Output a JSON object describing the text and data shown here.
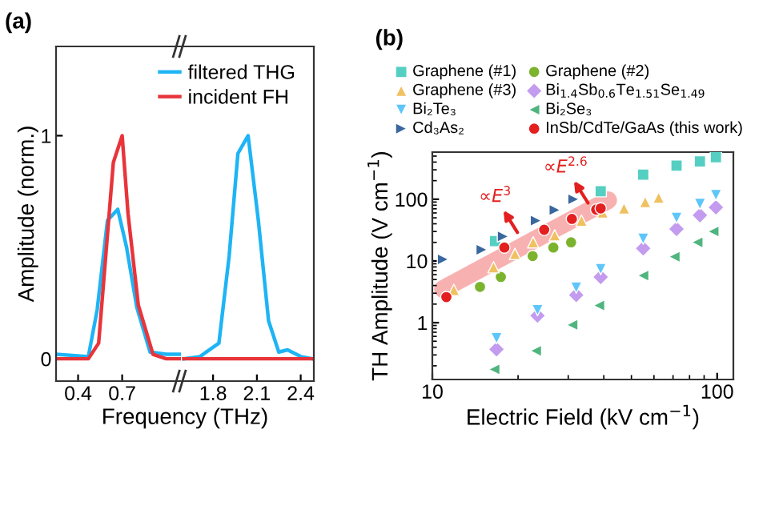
{
  "chart_data": [
    {
      "type": "line",
      "title": "(a)",
      "ylabel": "Amplitude (norm.)",
      "xlim": [
        0.25,
        1.1
      ],
      "xticks": [
        0.4,
        0.7
      ],
      "ylim": [
        -0.1,
        1.4
      ],
      "yticks": [
        0,
        1
      ],
      "legend": "top right",
      "grid": false,
      "line_style": "solid",
      "marker": "none",
      "series": [
        {
          "name": "filtered THG",
          "color": "#1eb4f5",
          "x": [
            0.25,
            0.47,
            0.53,
            0.6,
            0.67,
            0.73,
            0.8,
            0.89,
            1.0,
            1.1
          ],
          "values": [
            0.02,
            0.01,
            0.22,
            0.62,
            0.67,
            0.5,
            0.23,
            0.03,
            0.02,
            0.02
          ]
        },
        {
          "name": "incident FH",
          "color": "#e8343a",
          "x": [
            0.25,
            0.47,
            0.54,
            0.64,
            0.7,
            0.74,
            0.81,
            0.91,
            1.0,
            1.1
          ],
          "values": [
            0.0,
            0.0,
            0.07,
            0.88,
            1.0,
            0.65,
            0.24,
            0.02,
            0.0,
            0.0
          ]
        }
      ]
    },
    {
      "type": "line",
      "xlabel": "Frequency (THz)",
      "xlim": [
        1.58,
        2.49
      ],
      "xticks": [
        1.8,
        2.1,
        2.4
      ],
      "ylim": [
        -0.1,
        1.4
      ],
      "tick_labels": "x",
      "grid": false,
      "line_style": "solid",
      "marker": "none",
      "series": [
        {
          "color": "#1eb4f5",
          "x": [
            1.6,
            1.71,
            1.84,
            1.91,
            1.97,
            2.04,
            2.11,
            2.18,
            2.25,
            2.31,
            2.4,
            2.48
          ],
          "values": [
            0.0,
            0.01,
            0.07,
            0.46,
            0.92,
            1.0,
            0.62,
            0.17,
            0.03,
            0.04,
            0.01,
            0.0
          ]
        },
        {
          "color": "#e8343a",
          "x": [
            1.6,
            2.48
          ],
          "values": [
            0.0,
            0.0
          ]
        }
      ]
    },
    {
      "type": "scatter",
      "title": "(b)",
      "xlabel": "Electric Field (kV cm$^{−1}$)",
      "ylabel": "TH Amplitude (V cm$^{−1}$)",
      "log": "xy",
      "xlim": [
        10,
        114
      ],
      "xticks": [
        10,
        100
      ],
      "ylim": [
        0.12,
        580
      ],
      "yticks": [
        1,
        10,
        100
      ],
      "legend": "top",
      "grid": false,
      "annotations": [
        {
          "text": "∝E$^{3}$",
          "x": 19.9,
          "y": 29
        },
        {
          "text": "∝E$^{2.6}$",
          "x": 35.2,
          "y": 87
        }
      ],
      "series": [
        {
          "name": "Graphene (#1)",
          "color": "#55cfc2",
          "marker": "square",
          "x": [
            16.6,
            39,
            55,
            72,
            87,
            99
          ],
          "values": [
            21,
            135,
            250,
            350,
            410,
            480
          ]
        },
        {
          "name": "Graphene (#2)",
          "color": "#7cb32e",
          "marker": "circle",
          "x": [
            14.7,
            17.4,
            22.5,
            26.6,
            30.7
          ],
          "values": [
            3.8,
            5.5,
            12,
            16.5,
            20
          ]
        },
        {
          "name": "Graphene (#3)",
          "color": "#efc160",
          "marker": "triangle",
          "x": [
            11.9,
            16.4,
            19.5,
            22.6,
            26.9,
            33.4,
            39.6,
            47.1,
            55.9,
            62.3
          ],
          "values": [
            3.4,
            7.9,
            13,
            20,
            26,
            45,
            61,
            71,
            90,
            106
          ]
        },
        {
          "name": "Bi$_{1.4}$Sb$_{0.6}$Te$_{1.51}$Se$_{1.49}$",
          "color": "#c39bef",
          "marker": "diamond",
          "x": [
            16.8,
            23.4,
            32,
            39,
            55,
            72,
            87,
            99
          ],
          "values": [
            0.37,
            1.3,
            2.8,
            5.5,
            16,
            33,
            55,
            74
          ]
        },
        {
          "name": "Bi₂Te₃",
          "color": "#5ec6fa",
          "marker": "triangle_down",
          "x": [
            16.8,
            23.4,
            32,
            39,
            55,
            72,
            87,
            99
          ],
          "values": [
            0.56,
            1.6,
            3.7,
            7.4,
            23,
            50,
            84,
            117
          ]
        },
        {
          "name": "Bi₂Se₃",
          "color": "#4fb57e",
          "marker": "triangle_left",
          "x": [
            16.5,
            23.1,
            31,
            38.5,
            55,
            70.8,
            85.2,
            97
          ],
          "values": [
            0.175,
            0.35,
            0.92,
            1.9,
            5.8,
            11.7,
            20,
            30
          ]
        },
        {
          "name": "Cd₃As₂",
          "color": "#39679e",
          "marker": "triangle_right",
          "x": [
            10.9,
            14.9,
            17.7,
            23.1,
            26.9,
            31.3
          ],
          "values": [
            10.6,
            15.2,
            25,
            45,
            67,
            100
          ]
        },
        {
          "type": "line",
          "color": "#f7a9a9",
          "marker": "none",
          "x": [
            10.9,
            21.7,
            41.4
          ],
          "values": [
            3.5,
            19.4,
            96
          ]
        },
        {
          "name": "InSb/CdTe/GaAs (this work)",
          "color": "#e3201f",
          "marker": "circle",
          "x": [
            11.2,
            17.9,
            24.7,
            30.9,
            37.6,
            39
          ],
          "values": [
            2.6,
            16.5,
            32,
            48,
            68,
            71
          ]
        }
      ]
    }
  ]
}
